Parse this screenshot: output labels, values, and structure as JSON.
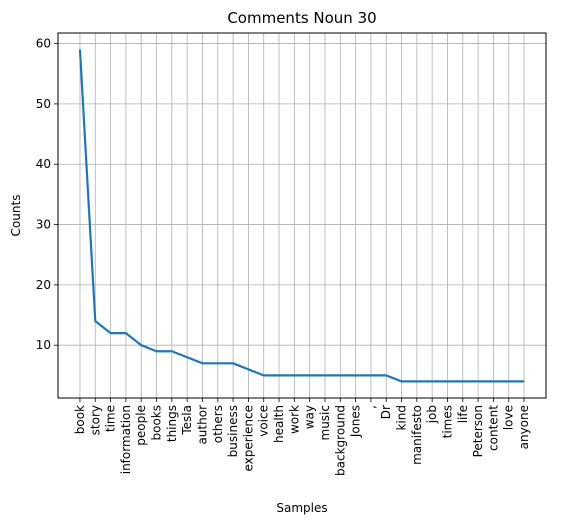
{
  "chart_data": {
    "type": "line",
    "title": "Comments Noun 30",
    "xlabel": "Samples",
    "ylabel": "Counts",
    "categories": [
      "book",
      "story",
      "time",
      "information",
      "people",
      "books",
      "things",
      "Tesla",
      "author",
      "others",
      "business",
      "experience",
      "voice",
      "health",
      "work",
      "way",
      "music",
      "background",
      "Jones",
      ",",
      "Dr",
      "kind",
      "manifesto",
      "job",
      "times",
      "life",
      "Peterson",
      "content",
      "love",
      "anyone"
    ],
    "series": [
      {
        "values": [
          59,
          14,
          12,
          12,
          10,
          9,
          9,
          8,
          7,
          7,
          7,
          6,
          5,
          5,
          5,
          5,
          5,
          5,
          5,
          5,
          5,
          4,
          4,
          4,
          4,
          4,
          4,
          4,
          4,
          4
        ]
      }
    ],
    "ylim": [
      1.25,
      61.75
    ],
    "yticks": [
      10,
      20,
      30,
      40,
      50,
      60
    ],
    "grid": true,
    "line_color": "#1f77b4"
  }
}
